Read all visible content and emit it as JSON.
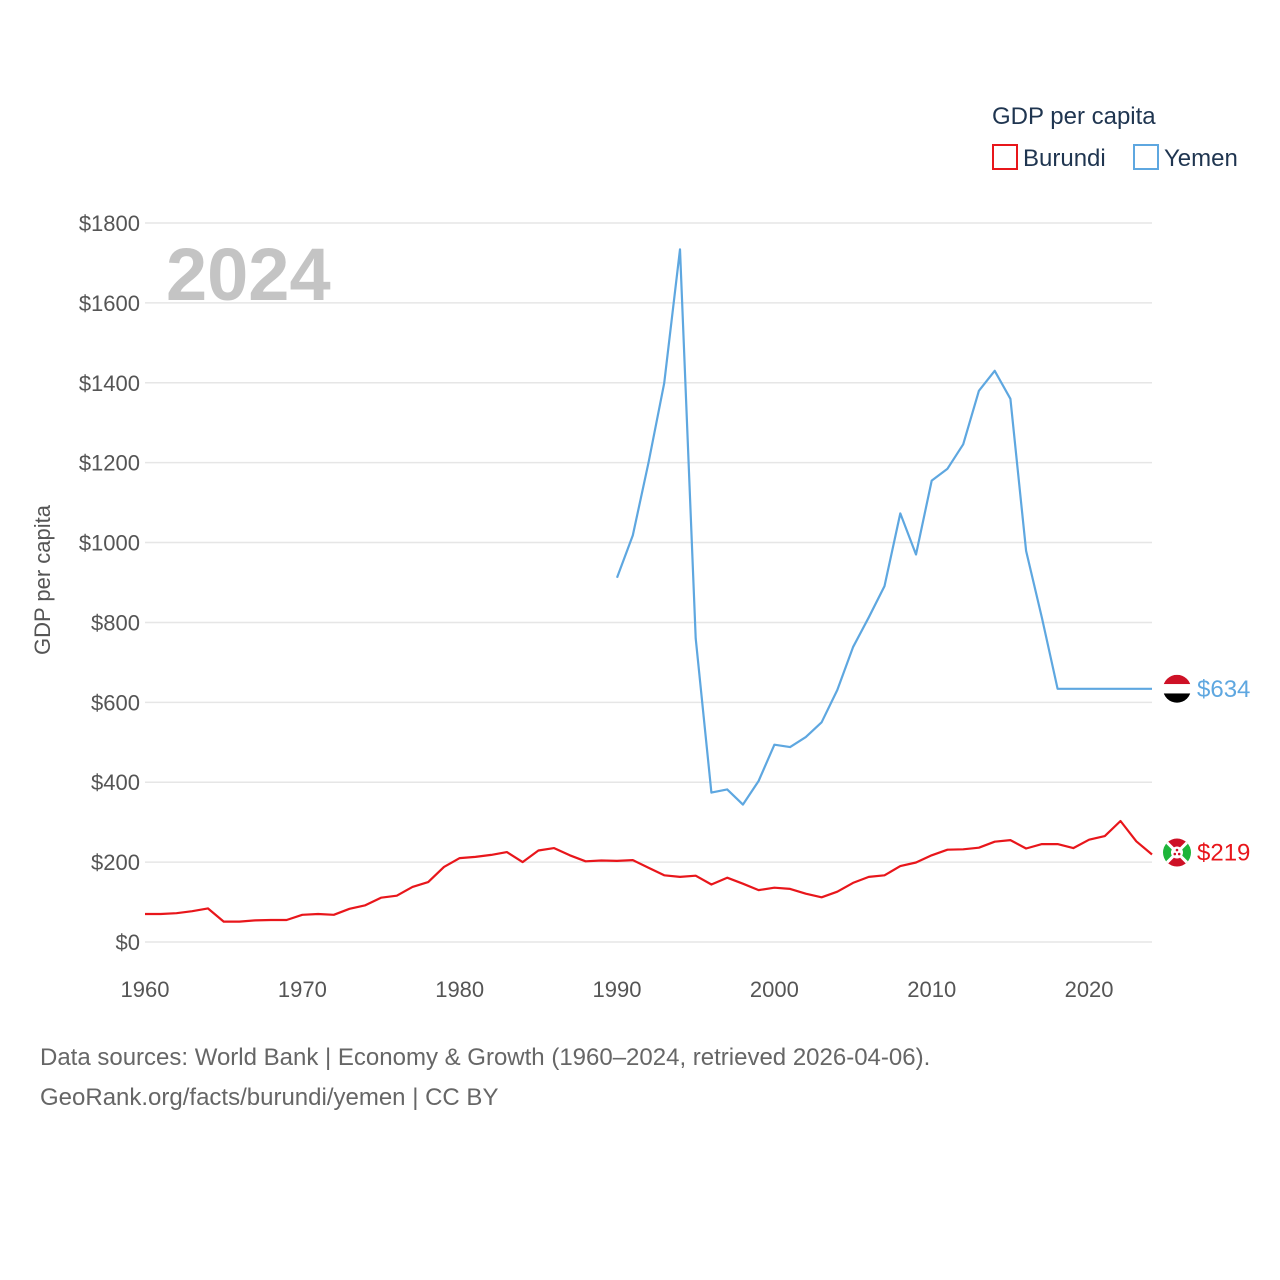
{
  "legend": {
    "title": "GDP per capita"
  },
  "year_label": "2024",
  "footer": {
    "line1": "Data sources: World Bank | Economy & Growth (1960–2024, retrieved 2026-04-06).",
    "line2": "GeoRank.org/facts/burundi/yemen | CC BY"
  },
  "colors": {
    "burundi": "#e8161b",
    "yemen": "#5ea7e0"
  },
  "chart_data": {
    "type": "line",
    "title": "GDP per capita",
    "xlabel": "",
    "ylabel": "GDP per capita",
    "xlim": [
      1960,
      2024
    ],
    "ylim": [
      0,
      1800
    ],
    "y_ticks": [
      0,
      200,
      400,
      600,
      800,
      1000,
      1200,
      1400,
      1600,
      1800
    ],
    "y_tick_labels": [
      "$0",
      "$200",
      "$400",
      "$600",
      "$800",
      "$1000",
      "$1200",
      "$1400",
      "$1600",
      "$1800"
    ],
    "x_ticks": [
      1960,
      1970,
      1980,
      1990,
      2000,
      2010,
      2020
    ],
    "x_tick_labels": [
      "1960",
      "1970",
      "1980",
      "1990",
      "2000",
      "2010",
      "2020"
    ],
    "grid": true,
    "legend_position": "top-right",
    "series": [
      {
        "name": "Burundi",
        "end_label": "$219",
        "x": [
          1960,
          1961,
          1962,
          1963,
          1964,
          1965,
          1966,
          1967,
          1968,
          1969,
          1970,
          1971,
          1972,
          1973,
          1974,
          1975,
          1976,
          1977,
          1978,
          1979,
          1980,
          1981,
          1982,
          1983,
          1984,
          1985,
          1986,
          1987,
          1988,
          1989,
          1990,
          1991,
          1992,
          1993,
          1994,
          1995,
          1996,
          1997,
          1998,
          1999,
          2000,
          2001,
          2002,
          2003,
          2004,
          2005,
          2006,
          2007,
          2008,
          2009,
          2010,
          2011,
          2012,
          2013,
          2014,
          2015,
          2016,
          2017,
          2018,
          2019,
          2020,
          2021,
          2022,
          2023,
          2024
        ],
        "values": [
          70,
          70,
          72,
          77,
          84,
          51,
          51,
          54,
          55,
          55,
          68,
          70,
          68,
          83,
          92,
          111,
          116,
          138,
          150,
          188,
          210,
          213,
          218,
          225,
          200,
          229,
          235,
          217,
          202,
          204,
          203,
          205,
          186,
          167,
          163,
          166,
          144,
          161,
          146,
          130,
          136,
          133,
          121,
          112,
          126,
          148,
          163,
          167,
          190,
          199,
          217,
          231,
          232,
          236,
          251,
          255,
          234,
          245,
          245,
          235,
          256,
          265,
          303,
          252,
          219
        ]
      },
      {
        "name": "Yemen",
        "end_label": "$634",
        "x": [
          1990,
          1991,
          1992,
          1993,
          1994,
          1995,
          1996,
          1997,
          1998,
          1999,
          2000,
          2001,
          2002,
          2003,
          2004,
          2005,
          2006,
          2007,
          2008,
          2009,
          2010,
          2011,
          2012,
          2013,
          2014,
          2015,
          2016,
          2017,
          2018,
          2019,
          2020,
          2021,
          2022,
          2023,
          2024
        ],
        "values": [
          912,
          1018,
          1200,
          1399,
          1734,
          760,
          374,
          382,
          344,
          403,
          494,
          488,
          513,
          550,
          631,
          738,
          813,
          891,
          1073,
          970,
          1155,
          1185,
          1246,
          1380,
          1430,
          1360,
          979,
          812,
          634,
          634,
          634,
          634,
          634,
          634,
          634
        ]
      }
    ]
  }
}
